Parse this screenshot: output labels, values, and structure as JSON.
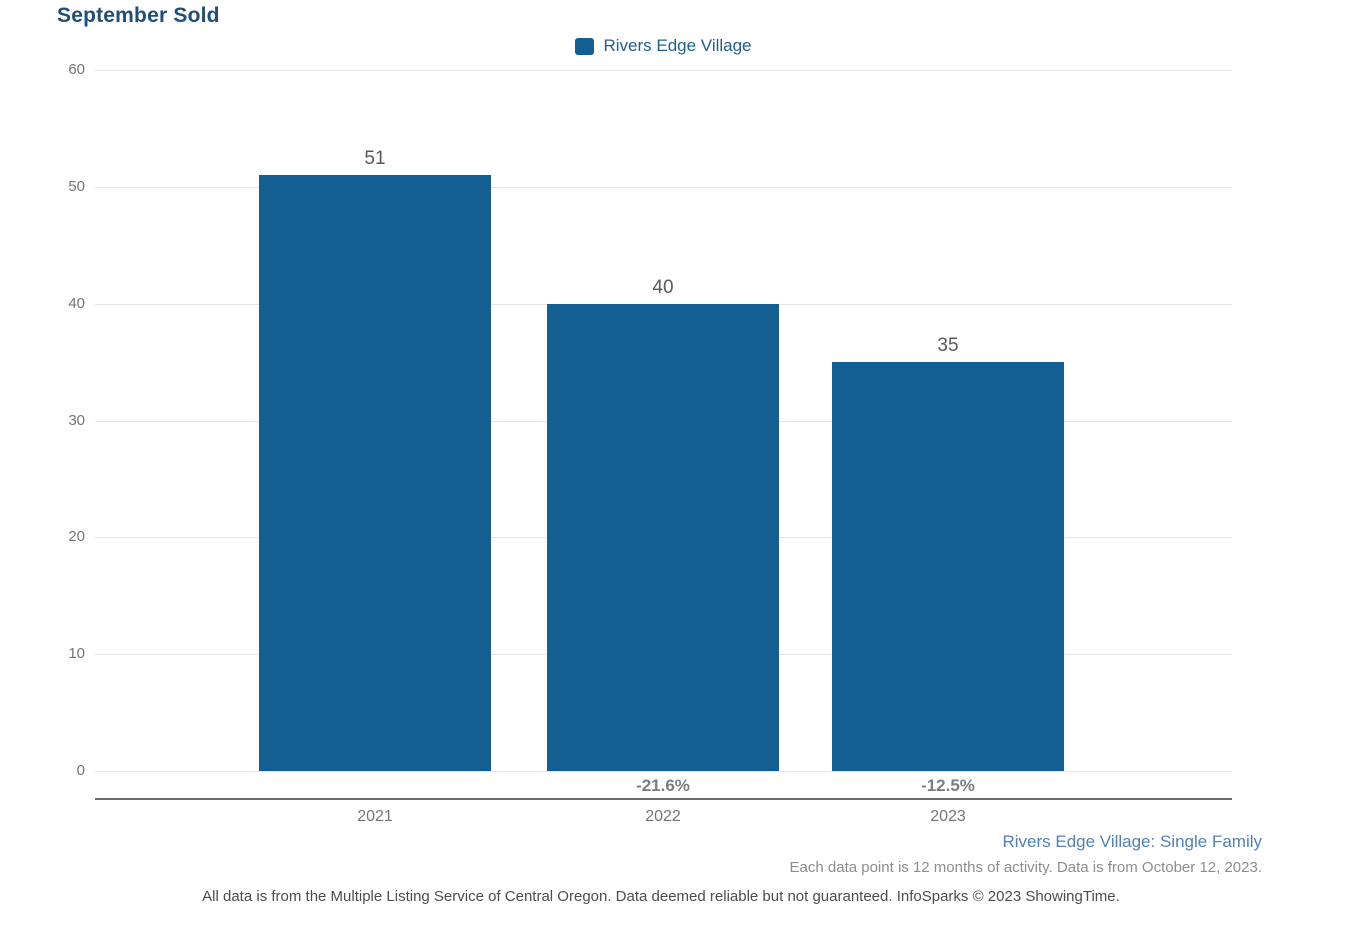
{
  "title": "September Sold",
  "legend": {
    "label": "Rivers Edge Village",
    "color": "#135e93"
  },
  "chart_data": {
    "type": "bar",
    "title": "September Sold",
    "categories": [
      "2021",
      "2022",
      "2023"
    ],
    "series": [
      {
        "name": "Rivers Edge Village",
        "values": [
          51,
          40,
          35
        ]
      }
    ],
    "values": [
      51,
      40,
      35
    ],
    "bar_value_labels": [
      "51",
      "40",
      "35"
    ],
    "pct_change_labels": [
      "",
      "-21.6%",
      "-12.5%"
    ],
    "xlabel": "",
    "ylabel": "",
    "ylim": [
      0,
      60
    ],
    "yticks": [
      0,
      10,
      20,
      30,
      40,
      50,
      60
    ],
    "grid": true,
    "legend_position": "top-center",
    "bar_color": "#135e93"
  },
  "footer": {
    "series_note": "Rivers Edge Village: Single Family",
    "activity_note": "Each data point is 12 months of activity. Data is from October 12, 2023.",
    "disclaimer": "All data is from the Multiple Listing Service of Central Oregon. Data deemed reliable but not guaranteed. InfoSparks © 2023 ShowingTime."
  },
  "colors": {
    "bar": "#135e93",
    "title": "#1f4e79",
    "legend_text": "#20608f",
    "series_note": "#5181b8",
    "gridline": "#e6e6e6",
    "axis_line": "#6b6b6b",
    "tick_text": "#757575",
    "value_text": "#58595b",
    "pct_text": "#7d7d7d"
  }
}
